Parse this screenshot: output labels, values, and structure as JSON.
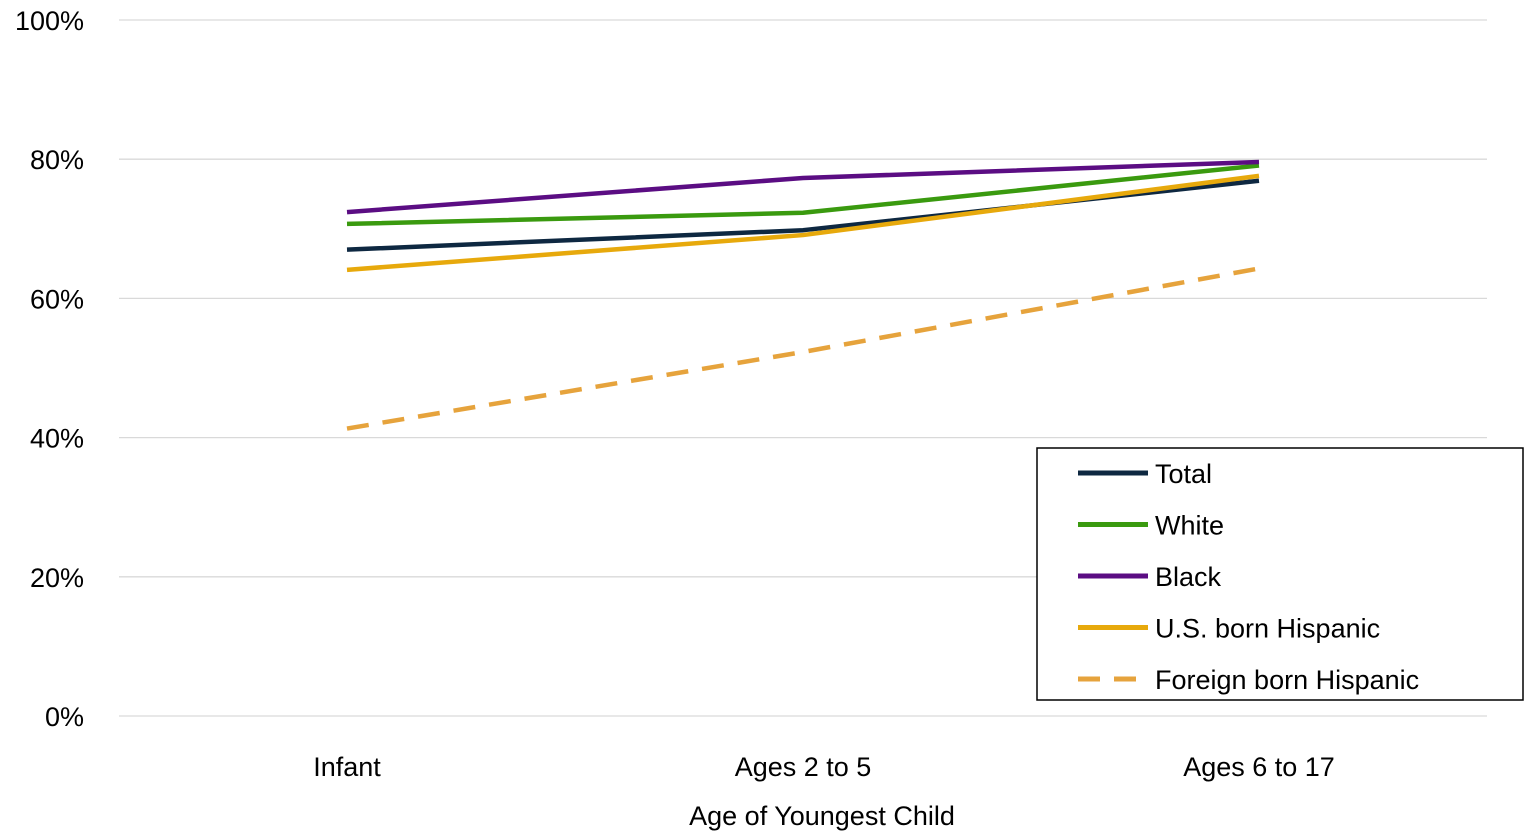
{
  "chart_data": {
    "type": "line",
    "categories": [
      "Infant",
      "Ages 2 to 5",
      "Ages 6 to 17"
    ],
    "xlabel": "Age of Youngest Child",
    "ylabel": "",
    "ylim": [
      0,
      100
    ],
    "yticks": [
      0,
      20,
      40,
      60,
      80,
      100
    ],
    "ytick_labels": [
      "0%",
      "20%",
      "40%",
      "60%",
      "80%",
      "100%"
    ],
    "grid": "horizontal",
    "legend_position": "bottom-right",
    "series": [
      {
        "name": "Total",
        "values": [
          67.0,
          69.8,
          76.9
        ],
        "color": "#0e2841",
        "dash": "solid"
      },
      {
        "name": "White",
        "values": [
          70.7,
          72.3,
          79.1
        ],
        "color": "#3a9a0f",
        "dash": "solid"
      },
      {
        "name": "Black",
        "values": [
          72.4,
          77.3,
          79.6
        ],
        "color": "#5b0d83",
        "dash": "solid"
      },
      {
        "name": "U.S. born Hispanic",
        "values": [
          64.1,
          69.1,
          77.6
        ],
        "color": "#e7a90c",
        "dash": "solid"
      },
      {
        "name": "Foreign born Hispanic",
        "values": [
          41.3,
          52.3,
          64.3
        ],
        "color": "#e6a33c",
        "dash": "dashed"
      }
    ]
  }
}
